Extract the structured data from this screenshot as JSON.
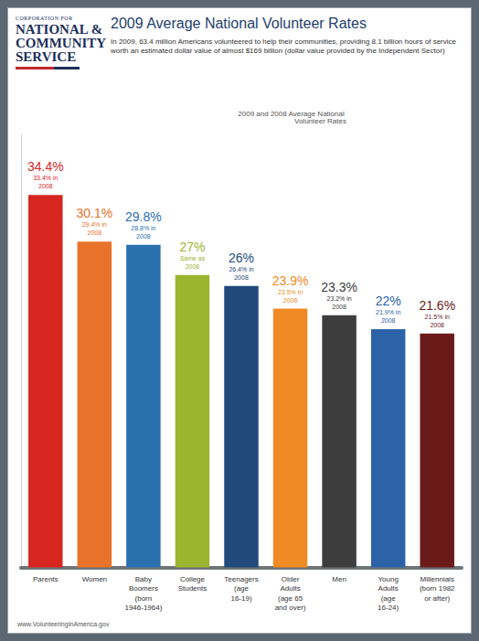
{
  "logo": [
    "CORPORATION FOR",
    "NATIONAL &",
    "COMMUNITY",
    "SERVICE"
  ],
  "chart_data": {
    "type": "bar",
    "title": "2009 Average National Volunteer Rates",
    "subtitle": "In 2009, 63.4 million Americans volunteered to help their communities, providing 8.1 billion hours of service worth an estimated dollar value of almost $169 billion (dollar value provided by the Independent Sector)",
    "caption": "2009 and 2008 Average National Volunteer Rates",
    "source": "www.VolunteeringInAmerica.gov",
    "categories": [
      "Parents",
      "Women",
      "Baby Boomers (born 1946-1964)",
      "College Students",
      "Teenagers (age 16-19)",
      "Older Adults (age 65 and over)",
      "Men",
      "Young Adults (age 16-24)",
      "Millennials (born 1982 or after)"
    ],
    "values": [
      34.4,
      30.1,
      29.8,
      27,
      26,
      23.9,
      23.3,
      22,
      21.6
    ],
    "value_labels": [
      "34.4%",
      "30.1%",
      "29.8%",
      "27%",
      "26%",
      "23.9%",
      "23.3%",
      "22%",
      "21.6%"
    ],
    "annotations": [
      "33.4% in 2008",
      "29.4% in 2008",
      "28.8% in 2008",
      "Same as 2008",
      "26.4% in 2008",
      "23.5% in 2008",
      "23.2% in 2008",
      "21.9% in 2008",
      "21.5% in 2008"
    ],
    "colors": [
      "#d7261f",
      "#e8722a",
      "#2a6fae",
      "#9bb52f",
      "#1f4a7a",
      "#f08a24",
      "#3d3d3d",
      "#2c63a8",
      "#6b1a1a"
    ],
    "ylim": [
      0,
      40
    ],
    "data_labels": true,
    "tick_labels": "x",
    "grid": false
  }
}
